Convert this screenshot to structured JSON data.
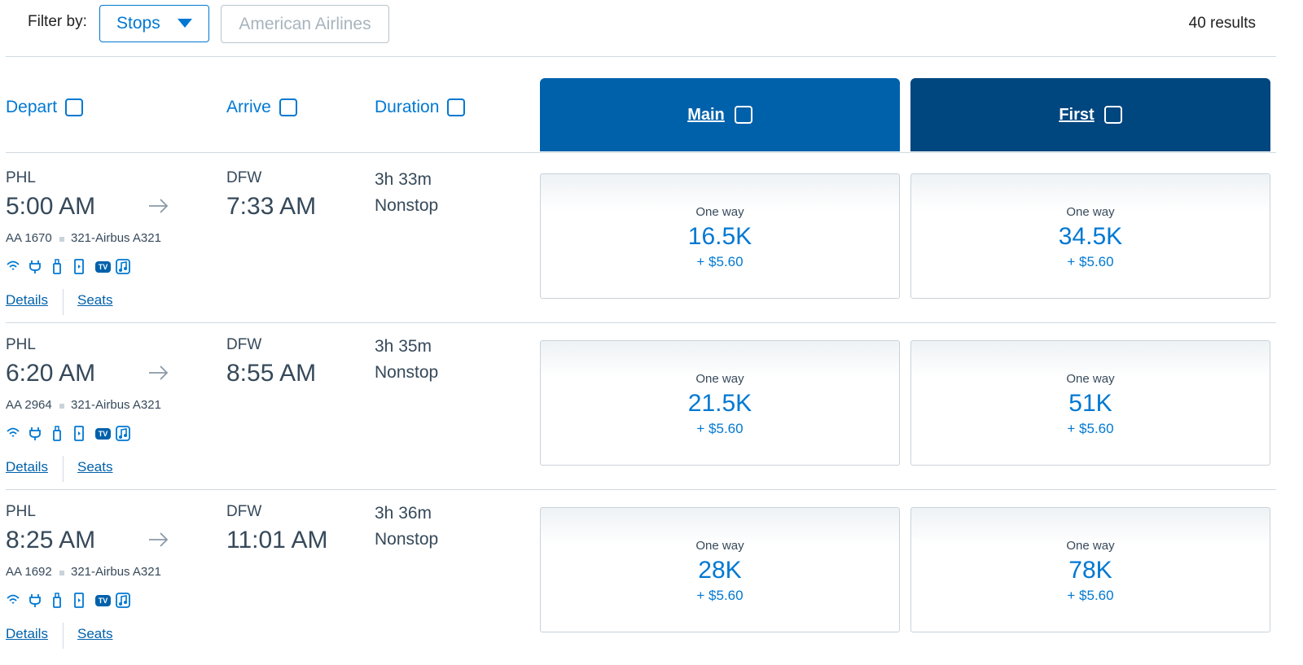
{
  "filter": {
    "label": "Filter by:",
    "stops": "Stops",
    "airline": "American Airlines",
    "results": "40 results"
  },
  "columns": {
    "depart": "Depart",
    "arrive": "Arrive",
    "duration": "Duration",
    "main": "Main",
    "first": "First"
  },
  "flights": [
    {
      "origin": "PHL",
      "depart_time": "5:00 AM",
      "destination": "DFW",
      "arrive_time": "7:33 AM",
      "flight": "AA 1670",
      "aircraft": "321-Airbus A321",
      "tv_badge": "TV",
      "duration": "3h 33m",
      "stops": "Nonstop",
      "links": [
        "Details",
        "Seats"
      ],
      "fares": [
        {
          "label": "One way",
          "price": "16.5K",
          "fee": "+ $5.60"
        },
        {
          "label": "One way",
          "price": "34.5K",
          "fee": "+ $5.60"
        }
      ]
    },
    {
      "origin": "PHL",
      "depart_time": "6:20 AM",
      "destination": "DFW",
      "arrive_time": "8:55 AM",
      "flight": "AA 2964",
      "aircraft": "321-Airbus A321",
      "tv_badge": "TV",
      "duration": "3h 35m",
      "stops": "Nonstop",
      "links": [
        "Details",
        "Seats"
      ],
      "fares": [
        {
          "label": "One way",
          "price": "21.5K",
          "fee": "+ $5.60"
        },
        {
          "label": "One way",
          "price": "51K",
          "fee": "+ $5.60"
        }
      ]
    },
    {
      "origin": "PHL",
      "depart_time": "8:25 AM",
      "destination": "DFW",
      "arrive_time": "11:01 AM",
      "flight": "AA 1692",
      "aircraft": "321-Airbus A321",
      "tv_badge": "TV",
      "duration": "3h 36m",
      "stops": "Nonstop",
      "links": [
        "Details",
        "Seats"
      ],
      "fares": [
        {
          "label": "One way",
          "price": "28K",
          "fee": "+ $5.60"
        },
        {
          "label": "One way",
          "price": "78K",
          "fee": "+ $5.60"
        }
      ]
    }
  ]
}
